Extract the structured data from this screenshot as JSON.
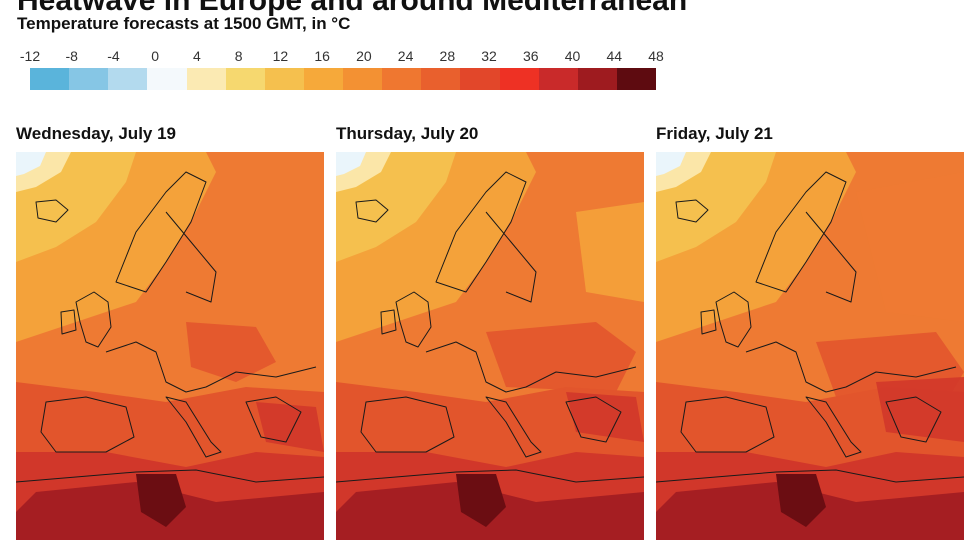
{
  "header": {
    "title": "Heatwave in Europe and around Mediterranean",
    "subtitle": "Temperature forecasts at 1500 GMT, in °C"
  },
  "legend": {
    "ticks": [
      "-12",
      "-8",
      "-4",
      "0",
      "4",
      "8",
      "12",
      "16",
      "20",
      "24",
      "28",
      "32",
      "36",
      "40",
      "44",
      "48"
    ],
    "colors": [
      "#5ab4db",
      "#86c6e5",
      "#b3daee",
      "#f4f9fc",
      "#fbeab3",
      "#f6d86f",
      "#f5c04e",
      "#f6a93a",
      "#f39133",
      "#ef7730",
      "#e9602d",
      "#e2472a",
      "#ee3124",
      "#c92a2a",
      "#9e1b1f",
      "#5e0b10"
    ]
  },
  "panels": [
    {
      "title": "Wednesday, July 19"
    },
    {
      "title": "Thursday, July 20"
    },
    {
      "title": "Friday, July 21"
    }
  ],
  "map_colors": {
    "very_hot": "#6b0d12",
    "hot_dark": "#a51e22",
    "hot": "#d1372a",
    "warm_red": "#e2552c",
    "warm": "#ee7a33",
    "mild": "#f4a23a",
    "cool": "#f5c04e",
    "cold": "#fbe6a8",
    "ice": "#eaf5fb",
    "border": "#1a1a1a"
  }
}
